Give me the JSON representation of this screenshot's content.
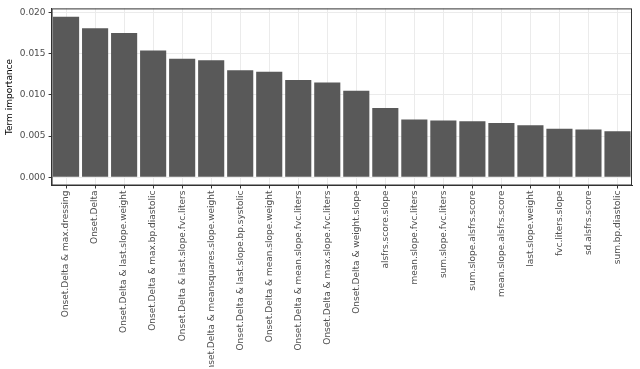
{
  "chart_data": {
    "type": "bar",
    "y_label": "Term importance",
    "categories": [
      "Onset.Delta & max.dressing",
      "Onset.Delta",
      "Onset.Delta & last.slope.weight",
      "Onset.Delta & max.bp.diastolic",
      "Onset.Delta & last.slope.fvc.liters",
      "Onset.Delta & meansquares.slope.weight",
      "Onset.Delta & last.slope.bp.systolic",
      "Onset.Delta & mean.slope.weight",
      "Onset.Delta & mean.slope.fvc.liters",
      "Onset.Delta & max.slope.fvc.liters",
      "Onset.Delta & weight.slope",
      "alsfrs.score.slope",
      "mean.slope.fvc.liters",
      "sum.slope.fvc.liters",
      "sum.slope.alsfrs.score",
      "mean.slope.alsfrs.score",
      "last.slope.weight",
      "fvc.liters.slope",
      "sd.alsfrs.score",
      "sum.bp.diastolic"
    ],
    "values": [
      0.0195,
      0.0181,
      0.0175,
      0.0154,
      0.0144,
      0.0142,
      0.013,
      0.0128,
      0.0118,
      0.0115,
      0.0105,
      0.0084,
      0.007,
      0.0069,
      0.0068,
      0.0066,
      0.0063,
      0.0059,
      0.0058,
      0.0056
    ],
    "color": "#595959",
    "ylim": [
      -0.001,
      0.0205
    ],
    "yticks": [
      {
        "value": 0,
        "label": "0.000"
      },
      {
        "value": 0.005,
        "label": "0.005"
      },
      {
        "value": 0.01,
        "label": "0.010"
      },
      {
        "value": 0.015,
        "label": "0.015"
      },
      {
        "value": 0.02,
        "label": "0.020"
      }
    ],
    "grid": true
  }
}
